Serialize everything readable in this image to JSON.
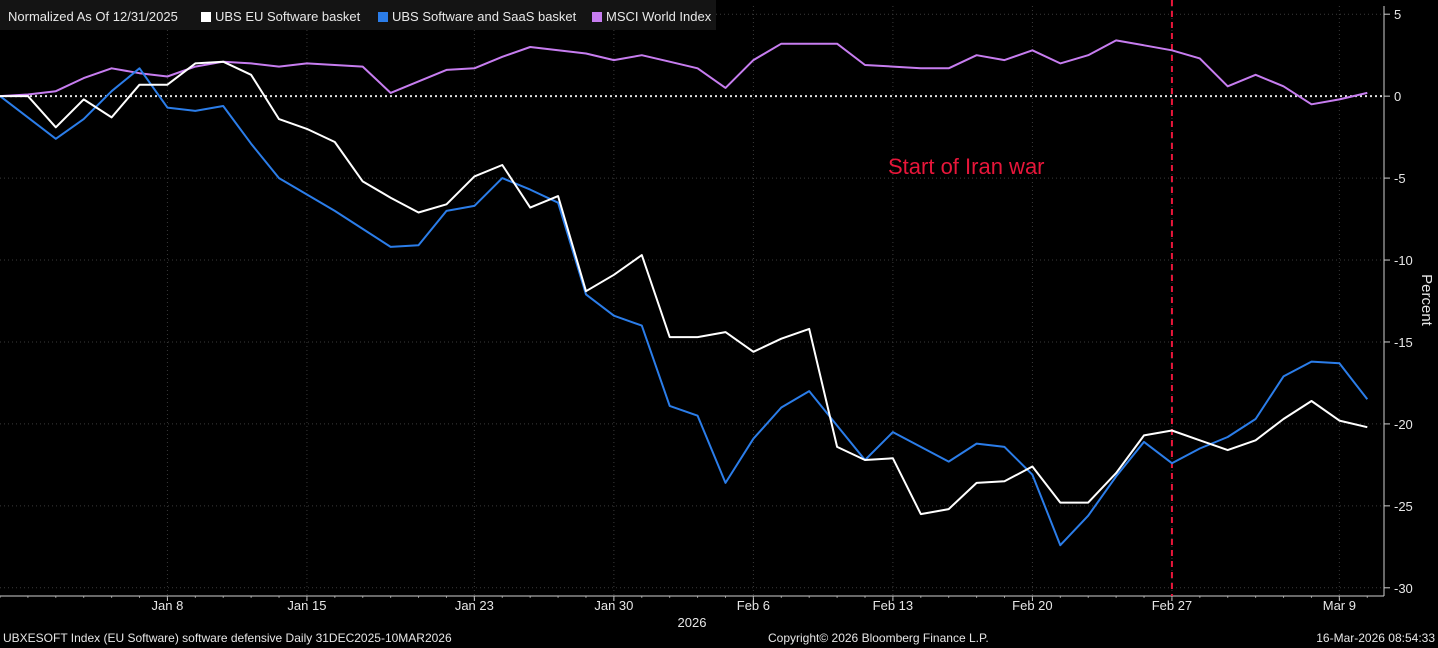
{
  "legend": {
    "prefix": "Normalized As Of 12/31/2025",
    "items": [
      {
        "name": "UBS EU Software basket",
        "color": "#ffffff"
      },
      {
        "name": "UBS Software and SaaS basket",
        "color": "#2b7de9"
      },
      {
        "name": "MSCI World Index",
        "color": "#c77df0"
      }
    ]
  },
  "chart_data": {
    "type": "line",
    "ylabel": "Percent",
    "year_label": "2026",
    "ylim": [
      -30.5,
      5.5
    ],
    "yticks": [
      5,
      0,
      -5,
      -10,
      -15,
      -20,
      -25,
      -30
    ],
    "xticks": [
      {
        "label": "Jan 8",
        "x": 6
      },
      {
        "label": "Jan 15",
        "x": 11
      },
      {
        "label": "Jan 23",
        "x": 17
      },
      {
        "label": "Jan 30",
        "x": 22
      },
      {
        "label": "Feb 6",
        "x": 27
      },
      {
        "label": "Feb 13",
        "x": 32
      },
      {
        "label": "Feb 20",
        "x": 37
      },
      {
        "label": "Feb 27",
        "x": 42
      },
      {
        "label": "Mar 9",
        "x": 48
      }
    ],
    "x_range": [
      0,
      49.6
    ],
    "series": [
      {
        "name": "MSCI World Index",
        "color": "#c77df0",
        "values": [
          0,
          0.1,
          0.3,
          1.1,
          1.7,
          1.4,
          1.2,
          1.8,
          2.1,
          2.0,
          1.8,
          2.0,
          1.9,
          1.8,
          0.2,
          0.9,
          1.6,
          1.7,
          2.4,
          3.0,
          2.8,
          2.6,
          2.2,
          2.5,
          2.1,
          1.7,
          0.5,
          2.2,
          3.2,
          3.2,
          3.2,
          1.9,
          1.8,
          1.7,
          1.7,
          2.5,
          2.2,
          2.8,
          2.0,
          2.5,
          3.4,
          3.1,
          2.8,
          2.3,
          0.6,
          1.3,
          0.6,
          -0.5,
          -0.2,
          0.2
        ]
      },
      {
        "name": "UBS Software and SaaS basket",
        "color": "#2b7de9",
        "values": [
          0,
          -1.3,
          -2.6,
          -1.4,
          0.3,
          1.7,
          -0.7,
          -0.9,
          -0.6,
          -2.9,
          -5.0,
          -6.0,
          -7.0,
          -8.1,
          -9.2,
          -9.1,
          -7.0,
          -6.7,
          -5.0,
          -5.7,
          -6.5,
          -12.1,
          -13.4,
          -14.0,
          -18.9,
          -19.5,
          -23.6,
          -20.9,
          -19.0,
          -18.0,
          -20.1,
          -22.2,
          -20.5,
          -21.4,
          -22.3,
          -21.2,
          -21.4,
          -23.1,
          -27.4,
          -25.6,
          -23.2,
          -21.1,
          -22.4,
          -21.5,
          -20.8,
          -19.7,
          -17.1,
          -16.2,
          -16.3,
          -18.5
        ]
      },
      {
        "name": "UBS EU Software basket",
        "color": "#ffffff",
        "values": [
          0,
          0.0,
          -1.9,
          -0.2,
          -1.3,
          0.7,
          0.7,
          2.0,
          2.1,
          1.3,
          -1.4,
          -2.0,
          -2.8,
          -5.2,
          -6.2,
          -7.1,
          -6.6,
          -4.9,
          -4.2,
          -6.8,
          -6.1,
          -11.9,
          -10.9,
          -9.7,
          -14.7,
          -14.7,
          -14.4,
          -15.6,
          -14.8,
          -14.2,
          -21.4,
          -22.2,
          -22.1,
          -25.5,
          -25.2,
          -23.6,
          -23.5,
          -22.6,
          -24.8,
          -24.8,
          -23.0,
          -20.7,
          -20.4,
          -21.0,
          -21.6,
          -21.0,
          -19.7,
          -18.6,
          -19.8,
          -20.2
        ]
      }
    ],
    "event_line": {
      "x": 42,
      "label": "Start of Iran war",
      "color": "#e8163a"
    }
  },
  "footer": {
    "left": "UBXESOFT Index (EU Software) software defensive Daily 31DEC2025-10MAR2026",
    "center": "Copyright© 2026 Bloomberg Finance L.P.",
    "right": "16-Mar-2026 08:54:33"
  }
}
